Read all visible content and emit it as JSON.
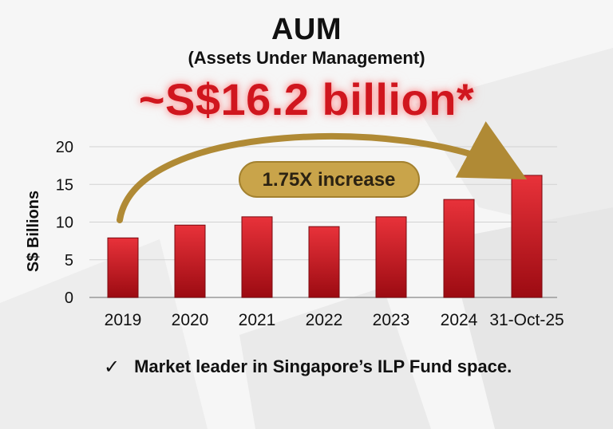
{
  "header": {
    "title": "AUM",
    "subtitle": "(Assets Under Management)",
    "headline": "~S$16.2 billion*"
  },
  "annotation": {
    "label": "1.75X increase",
    "badge_color": "#c9a44a",
    "arrow_color": "#b08a35"
  },
  "footer": {
    "check_icon": "check-mark-icon",
    "text": "Market leader in Singapore’s ILP Fund space."
  },
  "colors": {
    "bar_top": "#e8323a",
    "bar_bottom": "#9c0b12",
    "headline": "#d0161e"
  },
  "chart_data": {
    "type": "bar",
    "categories": [
      "2019",
      "2020",
      "2021",
      "2022",
      "2023",
      "2024",
      "31-Oct-25"
    ],
    "values": [
      7.9,
      9.6,
      10.7,
      9.4,
      10.7,
      13.0,
      16.2
    ],
    "title": "",
    "xlabel": "",
    "ylabel": "S$ Billions",
    "ylim": [
      0,
      20
    ],
    "yticks": [
      0,
      5,
      10,
      15,
      20
    ],
    "grid": true,
    "legend": "none"
  }
}
